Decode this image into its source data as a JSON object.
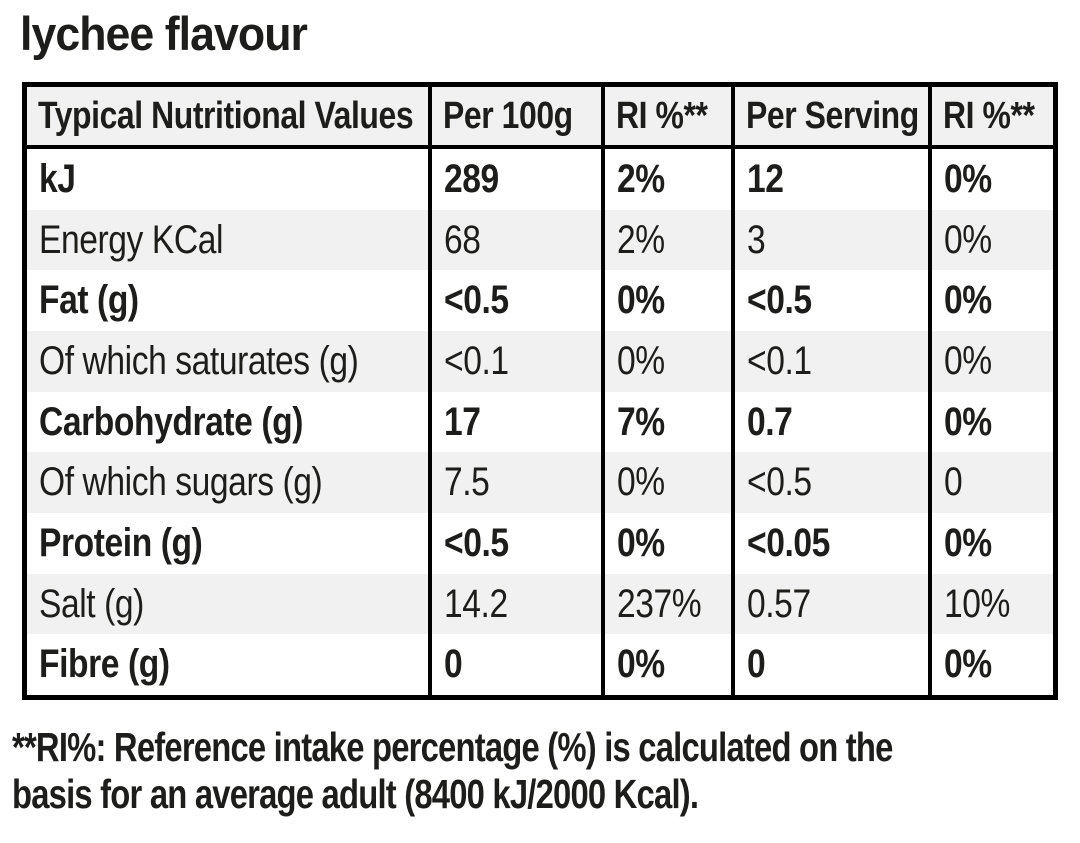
{
  "title": "lychee flavour",
  "table": {
    "headers": [
      "Typical Nutritional Values",
      "Per 100g",
      "RI %**",
      "Per Serving",
      "RI %**"
    ],
    "rows": [
      {
        "label": "kJ",
        "per100g": "289",
        "ri100g": "2%",
        "perServing": "12",
        "riServing": "0%",
        "bold": true
      },
      {
        "label": "Energy KCal",
        "per100g": "68",
        "ri100g": "2%",
        "perServing": "3",
        "riServing": "0%",
        "bold": false
      },
      {
        "label": "Fat (g)",
        "per100g": "<0.5",
        "ri100g": "0%",
        "perServing": "<0.5",
        "riServing": "0%",
        "bold": true
      },
      {
        "label": "Of which saturates (g)",
        "per100g": "<0.1",
        "ri100g": "0%",
        "perServing": "<0.1",
        "riServing": "0%",
        "bold": false
      },
      {
        "label": "Carbohydrate (g)",
        "per100g": "17",
        "ri100g": "7%",
        "perServing": "0.7",
        "riServing": "0%",
        "bold": true
      },
      {
        "label": "Of which sugars (g)",
        "per100g": "7.5",
        "ri100g": "0%",
        "perServing": "<0.5",
        "riServing": "0",
        "bold": false
      },
      {
        "label": "Protein (g)",
        "per100g": "<0.5",
        "ri100g": "0%",
        "perServing": "<0.05",
        "riServing": "0%",
        "bold": true
      },
      {
        "label": "Salt (g)",
        "per100g": "14.2",
        "ri100g": "237%",
        "perServing": "0.57",
        "riServing": "10%",
        "bold": false
      },
      {
        "label": "Fibre (g)",
        "per100g": "0",
        "ri100g": "0%",
        "perServing": "0",
        "riServing": "0%",
        "bold": true
      }
    ]
  },
  "footnote": {
    "line1": "**RI%: Reference intake percentage (%) is calculated on the",
    "line2": "basis for an average adult (8400 kJ/2000 Kcal)."
  },
  "colors": {
    "text": "#1d1d1b",
    "border": "#000000",
    "row_alt_bg": "#f1f1f1",
    "header_bg": "#f1f1f1",
    "page_bg": "#ffffff"
  }
}
